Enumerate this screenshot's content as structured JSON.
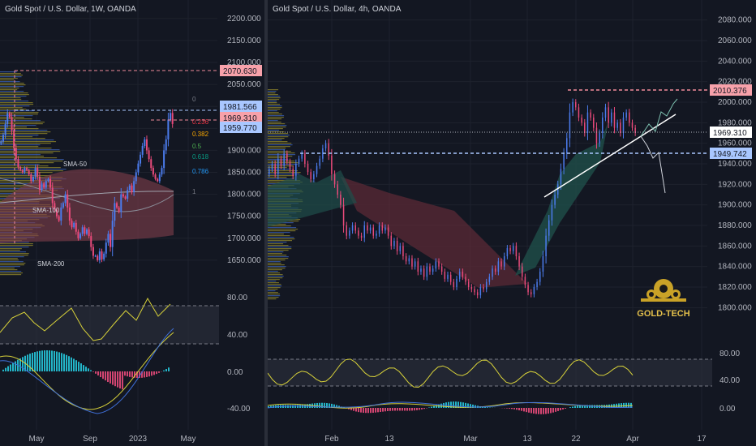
{
  "left_title": "Gold Spot / U.S. Dollar, 1W, OANDA",
  "right_title": "Gold Spot / U.S. Dollar, 4h, OANDA",
  "colors": {
    "background": "#131722",
    "grid": "#1e222d",
    "up": "#4b7bec",
    "down": "#e84a7a",
    "sma_band": "#7a3c49",
    "cloud_green": "#1f4f4a",
    "cloud_red": "#5b2a35",
    "osc": "#d8d23a",
    "price_red": "#f28b9a",
    "price_blue": "#a9c7ff"
  },
  "logo_text": "GOLD-TECH",
  "chart_data": [
    {
      "type": "candlestick",
      "name_visible": "Gold Spot / U.S. Dollar, 1W, OANDA",
      "x_ticks": [
        "May",
        "Sep",
        "2023",
        "May"
      ],
      "y_ticks": [
        "2200.000",
        "2150.000",
        "2100.000",
        "2050.000",
        "2000.000",
        "1950.000",
        "1900.000",
        "1850.000",
        "1800.000",
        "1750.000",
        "1700.000",
        "1650.000"
      ],
      "ylim": [
        1600,
        2220
      ],
      "price_labels": [
        "2070.630",
        "1981.566",
        "1969.310",
        "1959.770"
      ],
      "fib_labels": [
        "0",
        "0.236",
        "0.382",
        "0.5",
        "0.618",
        "0.786",
        "1"
      ],
      "annotations": [
        "SMA-50",
        "SMA-100",
        "SMA-200"
      ],
      "osc1_ticks": [
        "80.00",
        "40.00"
      ],
      "osc2_ticks": [
        "0.00",
        "-40.00"
      ],
      "closes": [
        1920,
        1935,
        1960,
        1985,
        1975,
        1945,
        1905,
        1880,
        1862,
        1855,
        1850,
        1860,
        1855,
        1845,
        1830,
        1840,
        1860,
        1840,
        1810,
        1825,
        1815,
        1830,
        1835,
        1815,
        1780,
        1765,
        1750,
        1740,
        1770,
        1780,
        1800,
        1770,
        1740,
        1725,
        1735,
        1715,
        1700,
        1710,
        1725,
        1710,
        1720,
        1705,
        1680,
        1660,
        1660,
        1650,
        1670,
        1652,
        1665,
        1690,
        1710,
        1680,
        1740,
        1780,
        1770,
        1760,
        1800,
        1795,
        1790,
        1810,
        1820,
        1805,
        1830,
        1850,
        1870,
        1890,
        1910,
        1925,
        1900,
        1880,
        1860,
        1845,
        1835,
        1830,
        1845,
        1860,
        1900,
        1925,
        1970,
        1985,
        1960
      ]
    },
    {
      "type": "candlestick",
      "name_visible": "Gold Spot / U.S. Dollar, 4h, OANDA",
      "x_ticks": [
        "Feb",
        "13",
        "Mar",
        "13",
        "22",
        "Apr",
        "17"
      ],
      "y_ticks": [
        "2080.000",
        "2060.000",
        "2040.000",
        "2020.000",
        "2000.000",
        "1980.000",
        "1960.000",
        "1940.000",
        "1920.000",
        "1900.000",
        "1880.000",
        "1860.000",
        "1840.000",
        "1820.000",
        "1800.000"
      ],
      "ylim": [
        1790,
        2090
      ],
      "price_labels": [
        "2010.376",
        "1969.310",
        "1949.742"
      ],
      "osc1_ticks": [
        "80.00",
        "40.00"
      ],
      "osc2_ticks": [
        "0.00"
      ],
      "closes": [
        1935,
        1940,
        1930,
        1945,
        1938,
        1950,
        1942,
        1935,
        1928,
        1940,
        1945,
        1950,
        1940,
        1932,
        1925,
        1930,
        1938,
        1945,
        1955,
        1960,
        1948,
        1930,
        1920,
        1910,
        1900,
        1880,
        1870,
        1875,
        1880,
        1875,
        1870,
        1868,
        1880,
        1875,
        1878,
        1870,
        1872,
        1880,
        1875,
        1878,
        1870,
        1860,
        1865,
        1855,
        1860,
        1850,
        1845,
        1848,
        1840,
        1845,
        1835,
        1838,
        1830,
        1840,
        1835,
        1838,
        1845,
        1840,
        1835,
        1828,
        1832,
        1825,
        1820,
        1828,
        1835,
        1830,
        1825,
        1820,
        1818,
        1815,
        1812,
        1820,
        1818,
        1825,
        1830,
        1838,
        1835,
        1845,
        1840,
        1850,
        1858,
        1855,
        1860,
        1850,
        1840,
        1830,
        1822,
        1815,
        1813,
        1820,
        1825,
        1835,
        1850,
        1870,
        1885,
        1900,
        1910,
        1920,
        1935,
        1950,
        1965,
        1990,
        2000,
        1995,
        1985,
        1980,
        1970,
        1990,
        1985,
        1975,
        1960,
        1970,
        1985,
        1995,
        1980,
        1990,
        1975,
        1980,
        1970,
        1985,
        1990,
        1980,
        1975,
        1970
      ]
    }
  ]
}
